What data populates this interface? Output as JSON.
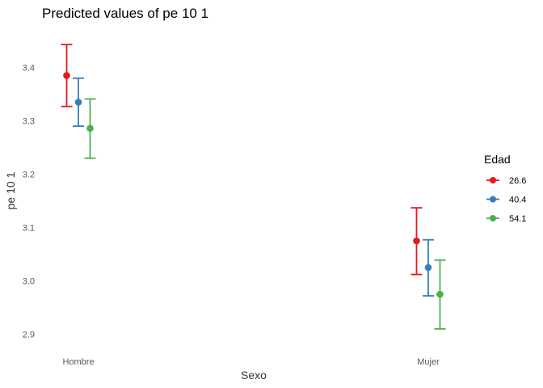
{
  "chart_data": {
    "type": "scatter",
    "title": "Predicted values of pe 10 1",
    "xlabel": "Sexo",
    "ylabel": "pe 10 1",
    "categories": [
      "Hombre",
      "Mujer"
    ],
    "ylim": [
      2.875,
      3.475
    ],
    "yticks": [
      "2.9",
      "3.0",
      "3.1",
      "3.2",
      "3.3",
      "3.4"
    ],
    "grid": false,
    "legend": {
      "title": "Edad",
      "position": "right"
    },
    "series": [
      {
        "name": "26.6",
        "color": "#e41a1c",
        "values": [
          3.385,
          3.075
        ],
        "lower": [
          3.327,
          3.012
        ],
        "upper": [
          3.443,
          3.137
        ]
      },
      {
        "name": "40.4",
        "color": "#377eb8",
        "values": [
          3.335,
          3.025
        ],
        "lower": [
          3.29,
          2.972
        ],
        "upper": [
          3.38,
          3.077
        ]
      },
      {
        "name": "54.1",
        "color": "#4daf4a",
        "values": [
          3.286,
          2.975
        ],
        "lower": [
          3.23,
          2.91
        ],
        "upper": [
          3.341,
          3.039
        ]
      }
    ]
  }
}
